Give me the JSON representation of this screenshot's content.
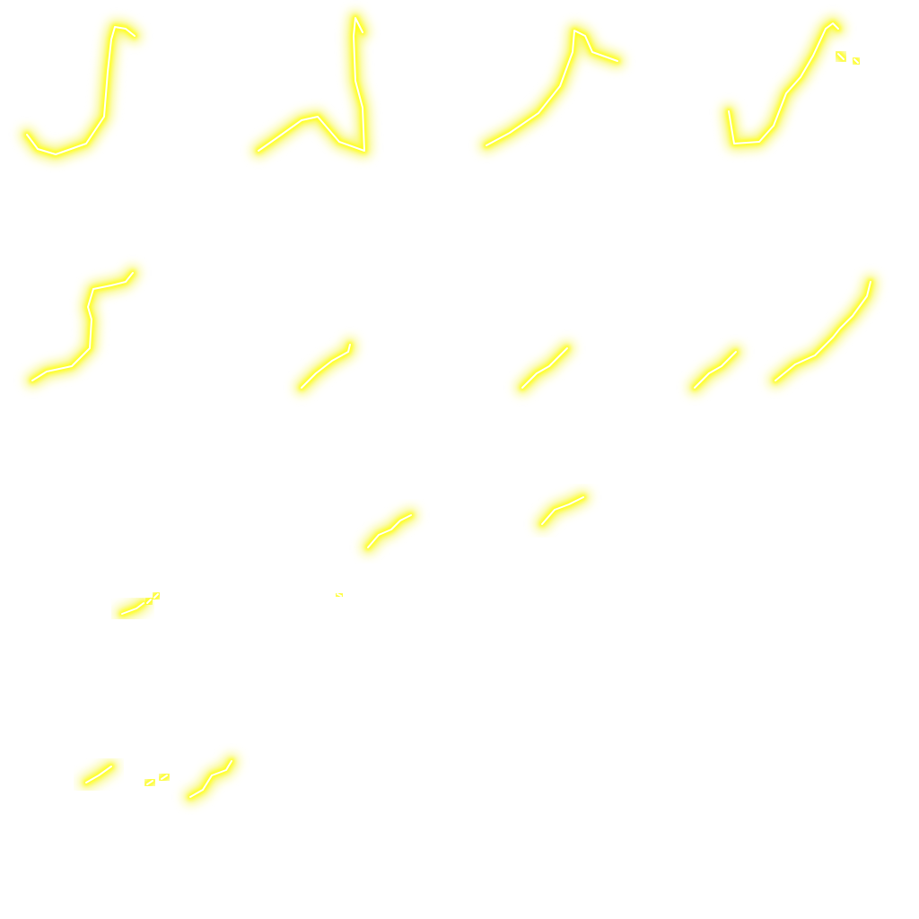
{
  "sprite_sheet": {
    "background_color": "#ffffff",
    "glow_color": "#f2f200",
    "body_color": "#ffff1a",
    "core_color": "#ffffff",
    "frame_grid": {
      "columns": 4,
      "rows": 4,
      "frame_count": 16
    },
    "frames": [
      {
        "id": "frame-1",
        "icon": "lightning-bolt-icon",
        "visible": true
      },
      {
        "id": "frame-2",
        "icon": "lightning-bolt-icon",
        "visible": true
      },
      {
        "id": "frame-3",
        "icon": "lightning-bolt-icon",
        "visible": true
      },
      {
        "id": "frame-4",
        "icon": "lightning-bolt-icon",
        "visible": true
      },
      {
        "id": "frame-5",
        "icon": "lightning-bolt-icon",
        "visible": true
      },
      {
        "id": "frame-6",
        "icon": "lightning-bolt-icon",
        "visible": true
      },
      {
        "id": "frame-7",
        "icon": "lightning-bolt-icon",
        "visible": true
      },
      {
        "id": "frame-8",
        "icon": "lightning-bolt-icon",
        "visible": true
      },
      {
        "id": "frame-9",
        "icon": "lightning-bolt-icon",
        "visible": true
      },
      {
        "id": "frame-10",
        "icon": "lightning-bolt-icon",
        "visible": true
      },
      {
        "id": "frame-11",
        "icon": "lightning-bolt-icon",
        "visible": true
      },
      {
        "id": "frame-12",
        "icon": "lightning-bolt-icon",
        "visible": true
      },
      {
        "id": "frame-13",
        "icon": "lightning-bolt-icon",
        "visible": true
      },
      {
        "id": "frame-14",
        "icon": "lightning-bolt-icon",
        "visible": true
      },
      {
        "id": "frame-15",
        "icon": "lightning-bolt-icon",
        "visible": true
      },
      {
        "id": "frame-16",
        "icon": "lightning-bolt-icon",
        "visible": false
      }
    ]
  }
}
